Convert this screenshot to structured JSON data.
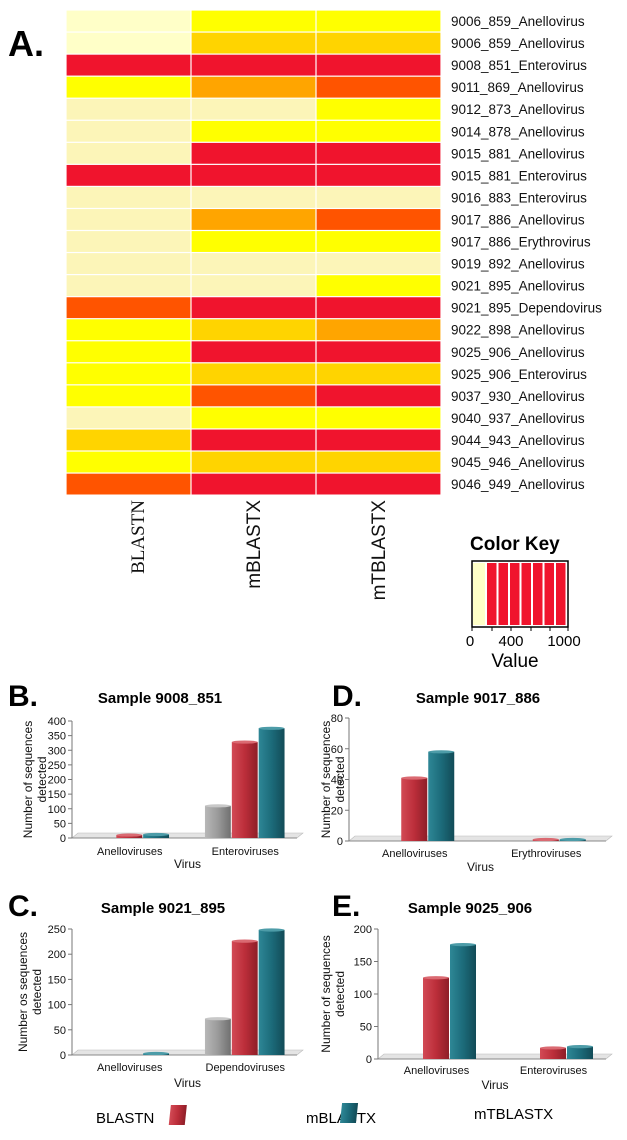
{
  "panel_labels": {
    "a": "A.",
    "b": "B.",
    "c": "C.",
    "d": "D.",
    "e": "E."
  },
  "colors": {
    "c0": "#FFFFC8",
    "c1": "#FCF5B8",
    "c2": "#FFFF00",
    "c3": "#FFD400",
    "c4": "#FFA500",
    "c5": "#FF5400",
    "c6": "#F0142D",
    "blastn": "#9E9E9E",
    "mblastx": "#C0303C",
    "mtblastx": "#1C6B7A"
  },
  "chart_data": [
    {
      "type": "heatmap",
      "columns": [
        "BLASTN",
        "mBLASTX",
        "mTBLASTX"
      ],
      "rows": [
        "9006_859_Anellovirus",
        "9006_859_Anellovirus",
        "9008_851_Enterovirus",
        "9011_869_Anellovirus",
        "9012_873_Anellovirus",
        "9014_878_Anellovirus",
        "9015_881_Anellovirus",
        "9015_881_Enterovirus",
        "9016_883_Enterovirus",
        "9017_886_Anellovirus",
        "9017_886_Erythrovirus",
        "9019_892_Anellovirus",
        "9021_895_Anellovirus",
        "9021_895_Dependovirus",
        "9022_898_Anellovirus",
        "9025_906_Anellovirus",
        "9025_906_Enterovirus",
        "9037_930_Anellovirus",
        "9040_937_Anellovirus",
        "9044_943_Anellovirus",
        "9045_946_Anellovirus",
        "9046_949_Anellovirus"
      ],
      "levels": [
        [
          0,
          2,
          2
        ],
        [
          0,
          3,
          3
        ],
        [
          6,
          6,
          6
        ],
        [
          2,
          4,
          5
        ],
        [
          1,
          1,
          2
        ],
        [
          1,
          2,
          2
        ],
        [
          1,
          6,
          6
        ],
        [
          6,
          6,
          6
        ],
        [
          1,
          1,
          1
        ],
        [
          1,
          4,
          5
        ],
        [
          1,
          2,
          2
        ],
        [
          1,
          1,
          1
        ],
        [
          1,
          1,
          2
        ],
        [
          5,
          6,
          6
        ],
        [
          2,
          3,
          4
        ],
        [
          2,
          6,
          6
        ],
        [
          2,
          3,
          3
        ],
        [
          2,
          5,
          6
        ],
        [
          1,
          2,
          2
        ],
        [
          3,
          6,
          6
        ],
        [
          2,
          3,
          3
        ],
        [
          5,
          6,
          6
        ]
      ],
      "color_key": {
        "title": "Color Key",
        "ticks": [
          "0",
          "400",
          "1000"
        ],
        "label": "Value"
      }
    },
    {
      "type": "bar",
      "title": "Sample 9008_851",
      "categories": [
        "Anelloviruses",
        "Enteroviruses"
      ],
      "series": [
        {
          "name": "BLASTN",
          "values": [
            0,
            110
          ]
        },
        {
          "name": "mBLASTX",
          "values": [
            10,
            328
          ]
        },
        {
          "name": "mTBLASTX",
          "values": [
            12,
            375
          ]
        }
      ],
      "yticks": [
        0,
        50,
        100,
        150,
        200,
        250,
        300,
        350,
        400
      ],
      "ylim": [
        0,
        400
      ],
      "ylabel": "Number of sequences detected",
      "xlabel": "Virus"
    },
    {
      "type": "bar",
      "title": "Sample 9017_886",
      "categories": [
        "Anelloviruses",
        "Erythroviruses"
      ],
      "series": [
        {
          "name": "BLASTN",
          "values": [
            0,
            0
          ]
        },
        {
          "name": "mBLASTX",
          "values": [
            41,
            1
          ]
        },
        {
          "name": "mTBLASTX",
          "values": [
            58,
            1
          ]
        }
      ],
      "yticks": [
        0,
        20,
        40,
        60,
        80
      ],
      "ylim": [
        0,
        80
      ],
      "ylabel": "Number of sequences detected",
      "xlabel": "Virus"
    },
    {
      "type": "bar",
      "title": "Sample 9021_895",
      "categories": [
        "Anelloviruses",
        "Dependoviruses"
      ],
      "series": [
        {
          "name": "BLASTN",
          "values": [
            0,
            72
          ]
        },
        {
          "name": "mBLASTX",
          "values": [
            0,
            226
          ]
        },
        {
          "name": "mTBLASTX",
          "values": [
            2,
            248
          ]
        }
      ],
      "yticks": [
        0,
        50,
        100,
        150,
        200,
        250
      ],
      "ylim": [
        0,
        250
      ],
      "ylabel": "Number os sequences detected",
      "xlabel": "Virus"
    },
    {
      "type": "bar",
      "title": "Sample 9025_906",
      "categories": [
        "Anelloviruses",
        "Enteroviruses"
      ],
      "series": [
        {
          "name": "BLASTN",
          "values": [
            0,
            0
          ]
        },
        {
          "name": "mBLASTX",
          "values": [
            125,
            17
          ]
        },
        {
          "name": "mTBLASTX",
          "values": [
            176,
            19
          ]
        }
      ],
      "yticks": [
        0,
        50,
        100,
        150,
        200
      ],
      "ylim": [
        0,
        200
      ],
      "ylabel": "Number of sequences detected",
      "xlabel": "Virus"
    }
  ],
  "legend": [
    {
      "label": "BLASTN",
      "color": "#9E9E9E"
    },
    {
      "label": "mBLASTX",
      "color": "#C0303C"
    },
    {
      "label": "mTBLASTX",
      "color": "#1C6B7A"
    }
  ]
}
